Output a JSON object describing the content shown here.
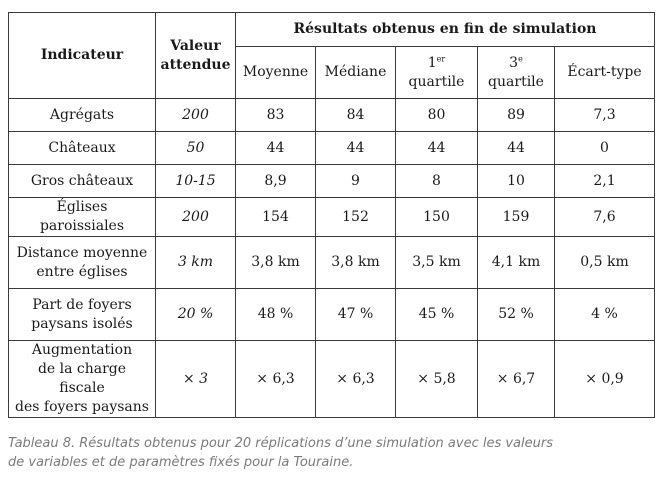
{
  "table": {
    "header": {
      "indicator": "Indicateur",
      "expected_line1": "Valeur",
      "expected_line2": "attendue",
      "group": "Résultats obtenus en fin de simulation",
      "mean": "Moyenne",
      "median": "Médiane",
      "q1_num": "1",
      "q1_sup": "er",
      "q1_word": "quartile",
      "q3_num": "3",
      "q3_sup": "e",
      "q3_word": "quartile",
      "std": "Écart-type"
    },
    "rows": [
      {
        "indicator_line1": "Agrégats",
        "indicator_line2": "",
        "indicator_line3": "",
        "expected": "200",
        "mean": "83",
        "median": "84",
        "q1": "80",
        "q3": "89",
        "std": "7,3"
      },
      {
        "indicator_line1": "Châteaux",
        "indicator_line2": "",
        "indicator_line3": "",
        "expected": "50",
        "mean": "44",
        "median": "44",
        "q1": "44",
        "q3": "44",
        "std": "0"
      },
      {
        "indicator_line1": "Gros châteaux",
        "indicator_line2": "",
        "indicator_line3": "",
        "expected": "10-15",
        "mean": "8,9",
        "median": "9",
        "q1": "8",
        "q3": "10",
        "std": "2,1"
      },
      {
        "indicator_line1": "Églises paroissiales",
        "indicator_line2": "",
        "indicator_line3": "",
        "expected": "200",
        "mean": "154",
        "median": "152",
        "q1": "150",
        "q3": "159",
        "std": "7,6"
      },
      {
        "indicator_line1": "Distance moyenne",
        "indicator_line2": "entre églises",
        "indicator_line3": "",
        "expected": "3 km",
        "mean": "3,8 km",
        "median": "3,8 km",
        "q1": "3,5 km",
        "q3": "4,1 km",
        "std": "0,5 km"
      },
      {
        "indicator_line1": "Part de foyers",
        "indicator_line2": "paysans isolés",
        "indicator_line3": "",
        "expected": "20 %",
        "mean": "48 %",
        "median": "47 %",
        "q1": "45 %",
        "q3": "52 %",
        "std": "4 %"
      },
      {
        "indicator_line1": "Augmentation",
        "indicator_line2": "de la charge fiscale",
        "indicator_line3": "des foyers paysans",
        "expected": "× 3",
        "mean": "× 6,3",
        "median": "× 6,3",
        "q1": "× 5,8",
        "q3": "× 6,7",
        "std": "× 0,9"
      }
    ]
  },
  "caption": {
    "line1": "Tableau 8. Résultats obtenus pour 20 réplications d’une simulation avec les valeurs",
    "line2": "de variables et de paramètres fixés pour la Touraine."
  }
}
